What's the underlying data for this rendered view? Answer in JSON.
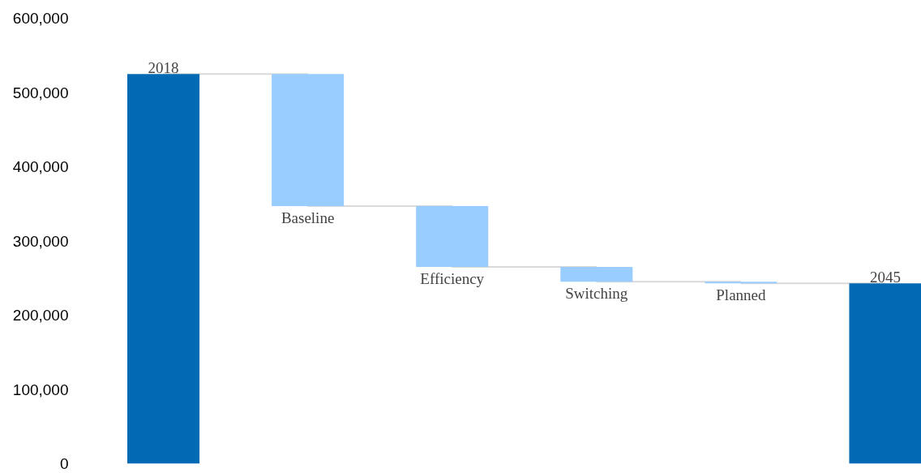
{
  "chart_data": {
    "type": "bar",
    "categories": [
      "2018",
      "Baseline",
      "Efficiency",
      "Switching",
      "Planned",
      "2045"
    ],
    "values": [
      525000,
      -178000,
      -82000,
      -20000,
      -2000,
      243000
    ],
    "base": [
      0,
      525000,
      347000,
      265000,
      245000,
      0
    ],
    "colors": [
      "#006ab4",
      "#99ccff",
      "#99ccff",
      "#99ccff",
      "#99ccff",
      "#006ab4"
    ],
    "ylim": [
      0,
      600000
    ],
    "yticks": [
      {
        "value": 0,
        "label": "0"
      },
      {
        "value": 100000,
        "label": "100,000"
      },
      {
        "value": 200000,
        "label": "200,000"
      },
      {
        "value": 300000,
        "label": "300,000"
      },
      {
        "value": 400000,
        "label": "400,000"
      },
      {
        "value": 500000,
        "label": "500,000"
      },
      {
        "value": 600000,
        "label": "600,000"
      }
    ],
    "tick_labels": "y",
    "series": [
      {
        "type": "step",
        "color": "#d9d9d9",
        "values": [
          525000,
          347000,
          265000,
          245000,
          243000,
          243000
        ]
      }
    ],
    "grid": false
  }
}
